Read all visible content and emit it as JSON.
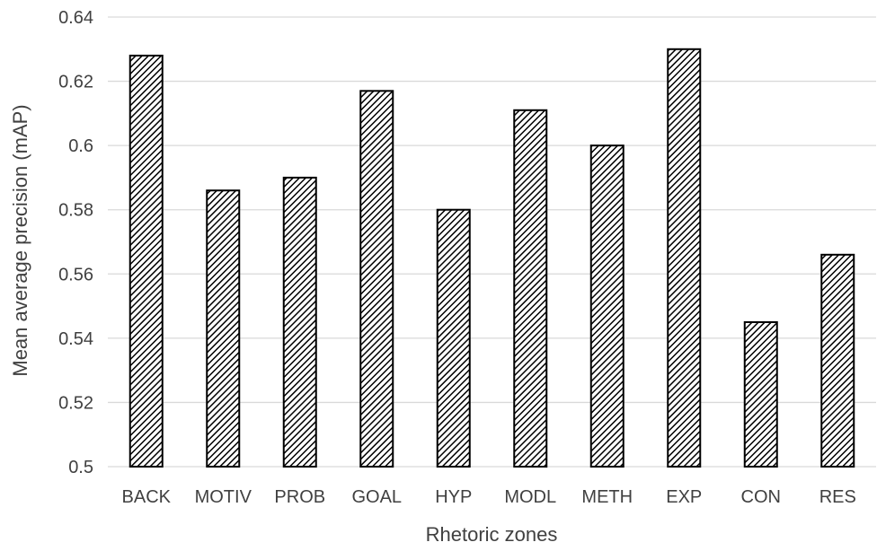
{
  "chart_data": {
    "type": "bar",
    "categories": [
      "BACK",
      "MOTIV",
      "PROB",
      "GOAL",
      "HYP",
      "MODL",
      "METH",
      "EXP",
      "CON",
      "RES"
    ],
    "values": [
      0.628,
      0.586,
      0.59,
      0.617,
      0.58,
      0.611,
      0.6,
      0.63,
      0.545,
      0.566
    ],
    "xlabel": "Rhetoric zones",
    "ylabel": "Mean average precision (mAP)",
    "ylim": [
      0.5,
      0.64
    ],
    "yticks": [
      "0.5",
      "0.52",
      "0.54",
      "0.56",
      "0.58",
      "0.6",
      "0.62",
      "0.64"
    ],
    "grid": true,
    "bar_fill": "diagonal-hatch",
    "colors": {
      "bar_stroke": "#000000",
      "hatch": "#000000",
      "grid": "#d9d9d9",
      "text": "#404040"
    }
  }
}
